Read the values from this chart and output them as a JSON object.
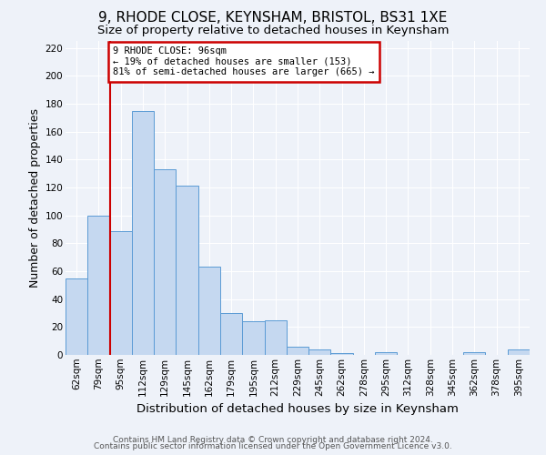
{
  "title": "9, RHODE CLOSE, KEYNSHAM, BRISTOL, BS31 1XE",
  "subtitle": "Size of property relative to detached houses in Keynsham",
  "xlabel": "Distribution of detached houses by size in Keynsham",
  "ylabel": "Number of detached properties",
  "bin_labels": [
    "62sqm",
    "79sqm",
    "95sqm",
    "112sqm",
    "129sqm",
    "145sqm",
    "162sqm",
    "179sqm",
    "195sqm",
    "212sqm",
    "229sqm",
    "245sqm",
    "262sqm",
    "278sqm",
    "295sqm",
    "312sqm",
    "328sqm",
    "345sqm",
    "362sqm",
    "378sqm",
    "395sqm"
  ],
  "bin_values": [
    55,
    100,
    89,
    175,
    133,
    121,
    63,
    30,
    24,
    25,
    6,
    4,
    1,
    0,
    2,
    0,
    0,
    0,
    2,
    0,
    4
  ],
  "bar_color": "#c5d8f0",
  "bar_edge_color": "#5b9bd5",
  "vline_index": 2,
  "marker_label_line1": "9 RHODE CLOSE: 96sqm",
  "marker_label_line2": "← 19% of detached houses are smaller (153)",
  "marker_label_line3": "81% of semi-detached houses are larger (665) →",
  "vline_color": "#cc0000",
  "annotation_box_edge_color": "#cc0000",
  "ylim": [
    0,
    225
  ],
  "yticks": [
    0,
    20,
    40,
    60,
    80,
    100,
    120,
    140,
    160,
    180,
    200,
    220
  ],
  "footer1": "Contains HM Land Registry data © Crown copyright and database right 2024.",
  "footer2": "Contains public sector information licensed under the Open Government Licence v3.0.",
  "bg_color": "#eef2f9",
  "grid_color": "#ffffff",
  "title_fontsize": 11,
  "subtitle_fontsize": 9.5,
  "axis_label_fontsize": 9,
  "tick_fontsize": 7.5,
  "footer_fontsize": 6.5
}
